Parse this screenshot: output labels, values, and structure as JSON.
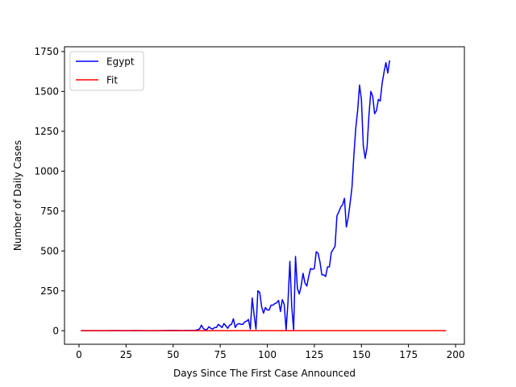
{
  "chart_data": {
    "type": "line",
    "title": "",
    "xlabel": "Days Since The First Case Announced",
    "ylabel": "Number of Daily Cases",
    "xlim": [
      -7.7,
      204.7
    ],
    "ylim": [
      -85,
      1780
    ],
    "xticks": [
      0,
      25,
      50,
      75,
      100,
      125,
      150,
      175,
      200
    ],
    "yticks": [
      0,
      250,
      500,
      750,
      1000,
      1250,
      1500,
      1750
    ],
    "grid": false,
    "legend": "top-left",
    "series": [
      {
        "name": "Egypt",
        "color": "#0000ff",
        "x": [
          1,
          5,
          10,
          15,
          20,
          25,
          30,
          35,
          40,
          45,
          50,
          55,
          60,
          62,
          64,
          65,
          66,
          67,
          68,
          69,
          70,
          71,
          72,
          73,
          74,
          75,
          76,
          77,
          78,
          79,
          80,
          81,
          82,
          83,
          84,
          85,
          86,
          87,
          88,
          89,
          90,
          91,
          92,
          93,
          94,
          95,
          96,
          97,
          98,
          99,
          100,
          101,
          102,
          103,
          104,
          105,
          106,
          107,
          108,
          109,
          110,
          111,
          112,
          113,
          114,
          115,
          116,
          117,
          118,
          119,
          120,
          121,
          122,
          123,
          124,
          125,
          126,
          127,
          128,
          129,
          130,
          131,
          132,
          133,
          134,
          135,
          136,
          137,
          138,
          139,
          140,
          141,
          142,
          143,
          144,
          145,
          146,
          147,
          148,
          149,
          150,
          151,
          152,
          153,
          154,
          155,
          156,
          157,
          158,
          159,
          160,
          161,
          162,
          163,
          164,
          165
        ],
        "y": [
          0,
          0,
          0,
          0,
          1,
          0,
          1,
          0,
          0,
          1,
          2,
          1,
          2,
          3,
          10,
          35,
          15,
          5,
          8,
          25,
          15,
          10,
          20,
          20,
          40,
          30,
          20,
          45,
          30,
          15,
          35,
          40,
          75,
          20,
          40,
          45,
          40,
          40,
          55,
          60,
          70,
          10,
          205,
          100,
          10,
          250,
          240,
          150,
          110,
          145,
          130,
          130,
          160,
          160,
          170,
          175,
          190,
          120,
          195,
          165,
          5,
          180,
          435,
          150,
          5,
          465,
          265,
          230,
          280,
          360,
          300,
          280,
          340,
          390,
          385,
          390,
          495,
          485,
          430,
          350,
          350,
          340,
          400,
          400,
          490,
          510,
          530,
          720,
          745,
          775,
          790,
          830,
          650,
          710,
          800,
          900,
          1100,
          1270,
          1380,
          1540,
          1450,
          1160,
          1080,
          1150,
          1350,
          1500,
          1470,
          1360,
          1380,
          1450,
          1440,
          1550,
          1620,
          1680,
          1615,
          1695
        ]
      },
      {
        "name": "Fit",
        "color": "#ff0000",
        "x": [
          1,
          25,
          50,
          75,
          100,
          125,
          150,
          175,
          195
        ],
        "y": [
          0,
          0,
          0,
          0,
          0,
          0,
          0,
          0,
          0
        ]
      }
    ]
  }
}
